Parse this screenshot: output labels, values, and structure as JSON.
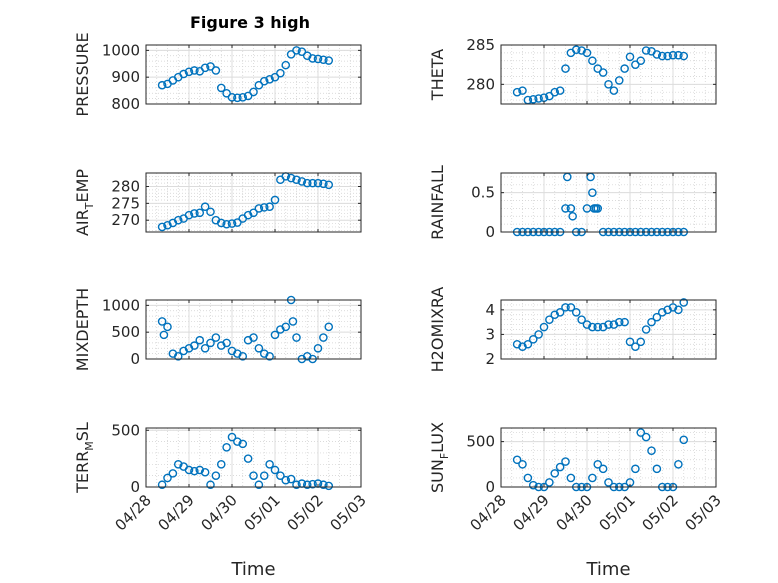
{
  "figure": {
    "title": "Figure 3 high",
    "xlabel": "Time",
    "date_ticks": [
      "04/28",
      "04/29",
      "04/30",
      "05/01",
      "05/02",
      "05/03"
    ],
    "marker_color": "#0072BD"
  },
  "chart_data": [
    {
      "type": "scatter",
      "ylabel": "PRESSURE",
      "ylim": [
        800,
        1020
      ],
      "yticks": [
        800,
        900,
        1000
      ],
      "grid": true,
      "x": [
        "04/28 09:00",
        "04/28 12:00",
        "04/28 15:00",
        "04/28 18:00",
        "04/28 21:00",
        "04/29 00:00",
        "04/29 03:00",
        "04/29 06:00",
        "04/29 09:00",
        "04/29 12:00",
        "04/29 15:00",
        "04/29 18:00",
        "04/29 21:00",
        "04/30 00:00",
        "04/30 03:00",
        "04/30 06:00",
        "04/30 09:00",
        "04/30 12:00",
        "04/30 15:00",
        "04/30 18:00",
        "04/30 21:00",
        "05/01 00:00",
        "05/01 03:00",
        "05/01 06:00",
        "05/01 09:00",
        "05/01 12:00",
        "05/01 15:00",
        "05/01 18:00",
        "05/01 21:00",
        "05/02 00:00",
        "05/02 03:00",
        "05/02 06:00"
      ],
      "y": [
        870,
        875,
        888,
        900,
        912,
        920,
        925,
        922,
        935,
        940,
        925,
        860,
        840,
        825,
        823,
        825,
        830,
        845,
        870,
        885,
        892,
        900,
        915,
        945,
        985,
        1000,
        995,
        980,
        970,
        968,
        965,
        962
      ]
    },
    {
      "type": "scatter",
      "ylabel": "THETA",
      "ylim": [
        277.5,
        285
      ],
      "yticks": [
        280,
        285
      ],
      "grid": true,
      "x": [
        "04/28 09:00",
        "04/28 12:00",
        "04/28 15:00",
        "04/28 18:00",
        "04/28 21:00",
        "04/29 00:00",
        "04/29 03:00",
        "04/29 06:00",
        "04/29 09:00",
        "04/29 12:00",
        "04/29 15:00",
        "04/29 18:00",
        "04/29 21:00",
        "04/30 00:00",
        "04/30 03:00",
        "04/30 06:00",
        "04/30 09:00",
        "04/30 12:00",
        "04/30 15:00",
        "04/30 18:00",
        "04/30 21:00",
        "05/01 00:00",
        "05/01 03:00",
        "05/01 06:00",
        "05/01 09:00",
        "05/01 12:00",
        "05/01 15:00",
        "05/01 18:00",
        "05/01 21:00",
        "05/02 00:00",
        "05/02 03:00",
        "05/02 06:00"
      ],
      "y": [
        279,
        279.2,
        278,
        278.1,
        278.2,
        278.3,
        278.5,
        279,
        279.2,
        282,
        284,
        284.4,
        284.3,
        284,
        283,
        282,
        281.5,
        280,
        279.2,
        280.5,
        282,
        283.5,
        282.5,
        283,
        284.3,
        284.2,
        283.8,
        283.6,
        283.6,
        283.7,
        283.7,
        283.6
      ]
    },
    {
      "type": "scatter",
      "ylabel": "AIR_TEMP",
      "ylim": [
        266.5,
        284
      ],
      "yticks": [
        270,
        275,
        280
      ],
      "grid": true,
      "x": [
        "04/28 09:00",
        "04/28 12:00",
        "04/28 15:00",
        "04/28 18:00",
        "04/28 21:00",
        "04/29 00:00",
        "04/29 03:00",
        "04/29 06:00",
        "04/29 09:00",
        "04/29 12:00",
        "04/29 15:00",
        "04/29 18:00",
        "04/29 21:00",
        "04/30 00:00",
        "04/30 03:00",
        "04/30 06:00",
        "04/30 09:00",
        "04/30 12:00",
        "04/30 15:00",
        "04/30 18:00",
        "04/30 21:00",
        "05/01 00:00",
        "05/01 03:00",
        "05/01 06:00",
        "05/01 09:00",
        "05/01 12:00",
        "05/01 15:00",
        "05/01 18:00",
        "05/01 21:00",
        "05/02 00:00",
        "05/02 03:00",
        "05/02 06:00"
      ],
      "y": [
        268,
        268.5,
        269.2,
        270,
        270.5,
        271.5,
        272,
        272.2,
        274,
        272.5,
        270,
        269.2,
        268.8,
        269,
        269.3,
        270.5,
        271.5,
        272.2,
        273.5,
        273.8,
        274,
        276,
        282,
        283,
        282.5,
        282,
        281.5,
        281,
        281,
        281,
        280.8,
        280.5
      ]
    },
    {
      "type": "scatter",
      "ylabel": "RAINFALL",
      "ylim": [
        0,
        0.75
      ],
      "yticks": [
        0,
        0.5
      ],
      "grid": true,
      "x": [
        "04/28 09:00",
        "04/28 12:00",
        "04/28 15:00",
        "04/28 18:00",
        "04/28 21:00",
        "04/29 00:00",
        "04/29 03:00",
        "04/29 06:00",
        "04/29 09:00",
        "04/29 12:00",
        "04/29 13:00",
        "04/29 15:00",
        "04/29 16:00",
        "04/29 18:00",
        "04/29 21:00",
        "04/30 00:00",
        "04/30 02:00",
        "04/30 03:00",
        "04/30 04:00",
        "04/30 05:00",
        "04/30 06:00",
        "04/30 09:00",
        "04/30 12:00",
        "04/30 15:00",
        "04/30 18:00",
        "04/30 21:00",
        "05/01 00:00",
        "05/01 03:00",
        "05/01 06:00",
        "05/01 09:00",
        "05/01 12:00",
        "05/01 15:00",
        "05/01 18:00",
        "05/01 21:00",
        "05/02 00:00",
        "05/02 03:00",
        "05/02 06:00"
      ],
      "y": [
        0,
        0,
        0,
        0,
        0,
        0,
        0,
        0,
        0,
        0.3,
        0.7,
        0.3,
        0.2,
        0,
        0,
        0.3,
        0.7,
        0.5,
        0.3,
        0.3,
        0.3,
        0,
        0,
        0,
        0,
        0,
        0,
        0,
        0,
        0,
        0,
        0,
        0,
        0,
        0,
        0,
        0
      ]
    },
    {
      "type": "scatter",
      "ylabel": "MIXDEPTH",
      "ylim": [
        0,
        1100
      ],
      "yticks": [
        0,
        500,
        1000
      ],
      "grid": true,
      "x": [
        "04/28 09:00",
        "04/28 10:00",
        "04/28 12:00",
        "04/28 15:00",
        "04/28 18:00",
        "04/28 21:00",
        "04/29 00:00",
        "04/29 03:00",
        "04/29 06:00",
        "04/29 09:00",
        "04/29 12:00",
        "04/29 15:00",
        "04/29 18:00",
        "04/29 21:00",
        "04/30 00:00",
        "04/30 03:00",
        "04/30 06:00",
        "04/30 09:00",
        "04/30 12:00",
        "04/30 15:00",
        "04/30 18:00",
        "04/30 21:00",
        "05/01 00:00",
        "05/01 03:00",
        "05/01 06:00",
        "05/01 09:00",
        "05/01 10:00",
        "05/01 12:00",
        "05/01 15:00",
        "05/01 18:00",
        "05/01 21:00",
        "05/02 00:00",
        "05/02 03:00",
        "05/02 06:00"
      ],
      "y": [
        700,
        450,
        600,
        100,
        50,
        150,
        200,
        250,
        350,
        200,
        300,
        400,
        250,
        300,
        150,
        100,
        50,
        350,
        400,
        200,
        100,
        50,
        450,
        550,
        600,
        1100,
        700,
        400,
        0,
        50,
        0,
        200,
        400,
        600
      ]
    },
    {
      "type": "scatter",
      "ylabel": "H2OMIXRA",
      "ylim": [
        2,
        4.4
      ],
      "yticks": [
        2,
        3,
        4
      ],
      "grid": true,
      "x": [
        "04/28 09:00",
        "04/28 12:00",
        "04/28 15:00",
        "04/28 18:00",
        "04/28 21:00",
        "04/29 00:00",
        "04/29 03:00",
        "04/29 06:00",
        "04/29 09:00",
        "04/29 12:00",
        "04/29 15:00",
        "04/29 18:00",
        "04/29 21:00",
        "04/30 00:00",
        "04/30 03:00",
        "04/30 06:00",
        "04/30 09:00",
        "04/30 12:00",
        "04/30 15:00",
        "04/30 18:00",
        "04/30 21:00",
        "05/01 00:00",
        "05/01 03:00",
        "05/01 06:00",
        "05/01 09:00",
        "05/01 12:00",
        "05/01 15:00",
        "05/01 18:00",
        "05/01 21:00",
        "05/02 00:00",
        "05/02 03:00",
        "05/02 06:00"
      ],
      "y": [
        2.6,
        2.5,
        2.6,
        2.8,
        3.0,
        3.3,
        3.6,
        3.8,
        3.9,
        4.1,
        4.1,
        3.9,
        3.6,
        3.4,
        3.3,
        3.3,
        3.3,
        3.4,
        3.4,
        3.5,
        3.5,
        2.7,
        2.5,
        2.7,
        3.2,
        3.5,
        3.7,
        3.9,
        4.0,
        4.1,
        4.0,
        4.3
      ]
    },
    {
      "type": "scatter",
      "ylabel": "TERR_MSL",
      "ylim": [
        0,
        520
      ],
      "yticks": [
        0,
        500
      ],
      "grid": true,
      "x": [
        "04/28 09:00",
        "04/28 12:00",
        "04/28 15:00",
        "04/28 18:00",
        "04/28 21:00",
        "04/29 00:00",
        "04/29 03:00",
        "04/29 06:00",
        "04/29 09:00",
        "04/29 12:00",
        "04/29 15:00",
        "04/29 18:00",
        "04/29 21:00",
        "04/30 00:00",
        "04/30 03:00",
        "04/30 06:00",
        "04/30 09:00",
        "04/30 12:00",
        "04/30 15:00",
        "04/30 18:00",
        "04/30 21:00",
        "05/01 00:00",
        "05/01 03:00",
        "05/01 06:00",
        "05/01 09:00",
        "05/01 12:00",
        "05/01 15:00",
        "05/01 18:00",
        "05/01 21:00",
        "05/02 00:00",
        "05/02 03:00",
        "05/02 06:00"
      ],
      "y": [
        20,
        80,
        120,
        200,
        180,
        150,
        140,
        150,
        130,
        20,
        100,
        200,
        350,
        440,
        400,
        380,
        250,
        100,
        20,
        100,
        200,
        150,
        100,
        60,
        70,
        20,
        30,
        20,
        25,
        30,
        20,
        10
      ]
    },
    {
      "type": "scatter",
      "ylabel": "SUN_FLUX",
      "ylim": [
        0,
        650
      ],
      "yticks": [
        0,
        500
      ],
      "grid": true,
      "x": [
        "04/28 09:00",
        "04/28 12:00",
        "04/28 15:00",
        "04/28 18:00",
        "04/28 21:00",
        "04/29 00:00",
        "04/29 03:00",
        "04/29 06:00",
        "04/29 09:00",
        "04/29 12:00",
        "04/29 15:00",
        "04/29 18:00",
        "04/29 21:00",
        "04/30 00:00",
        "04/30 03:00",
        "04/30 06:00",
        "04/30 09:00",
        "04/30 12:00",
        "04/30 15:00",
        "04/30 18:00",
        "04/30 21:00",
        "05/01 00:00",
        "05/01 03:00",
        "05/01 06:00",
        "05/01 09:00",
        "05/01 12:00",
        "05/01 15:00",
        "05/01 18:00",
        "05/01 21:00",
        "05/02 00:00",
        "05/02 03:00",
        "05/02 06:00"
      ],
      "y": [
        300,
        250,
        100,
        20,
        0,
        0,
        50,
        150,
        220,
        280,
        100,
        0,
        0,
        0,
        100,
        250,
        200,
        50,
        0,
        0,
        0,
        50,
        200,
        600,
        550,
        400,
        200,
        0,
        0,
        0,
        250,
        520
      ]
    }
  ]
}
